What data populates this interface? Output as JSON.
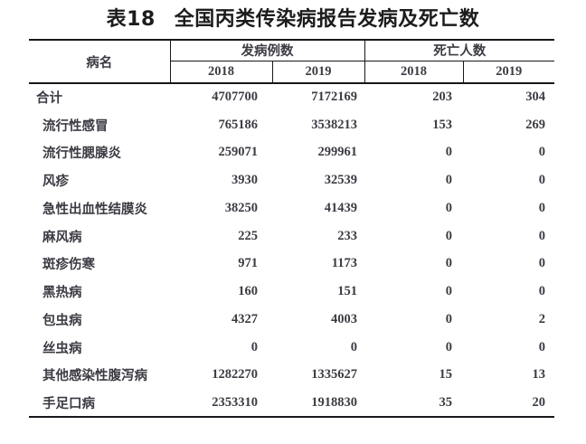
{
  "page": {
    "title_prefix": "表18",
    "title": "全国丙类传染病报告发病及死亡数"
  },
  "table": {
    "col_disease": "病名",
    "group_incidence": "发病例数",
    "group_deaths": "死亡人数",
    "year_cols": [
      "2018",
      "2019",
      "2018",
      "2019"
    ],
    "rows": [
      {
        "name": "合计",
        "incidence_2018": "4707700",
        "incidence_2019": "7172169",
        "deaths_2018": "203",
        "deaths_2019": "304"
      },
      {
        "name": "流行性感冒",
        "incidence_2018": "765186",
        "incidence_2019": "3538213",
        "deaths_2018": "153",
        "deaths_2019": "269"
      },
      {
        "name": "流行性腮腺炎",
        "incidence_2018": "259071",
        "incidence_2019": "299961",
        "deaths_2018": "0",
        "deaths_2019": "0"
      },
      {
        "name": "风疹",
        "incidence_2018": "3930",
        "incidence_2019": "32539",
        "deaths_2018": "0",
        "deaths_2019": "0"
      },
      {
        "name": "急性出血性结膜炎",
        "incidence_2018": "38250",
        "incidence_2019": "41439",
        "deaths_2018": "0",
        "deaths_2019": "0"
      },
      {
        "name": "麻风病",
        "incidence_2018": "225",
        "incidence_2019": "233",
        "deaths_2018": "0",
        "deaths_2019": "0"
      },
      {
        "name": "斑疹伤寒",
        "incidence_2018": "971",
        "incidence_2019": "1173",
        "deaths_2018": "0",
        "deaths_2019": "0"
      },
      {
        "name": "黑热病",
        "incidence_2018": "160",
        "incidence_2019": "151",
        "deaths_2018": "0",
        "deaths_2019": "0"
      },
      {
        "name": "包虫病",
        "incidence_2018": "4327",
        "incidence_2019": "4003",
        "deaths_2018": "0",
        "deaths_2019": "2"
      },
      {
        "name": "丝虫病",
        "incidence_2018": "0",
        "incidence_2019": "0",
        "deaths_2018": "0",
        "deaths_2019": "0"
      },
      {
        "name": "其他感染性腹泻病",
        "incidence_2018": "1282270",
        "incidence_2019": "1335627",
        "deaths_2018": "15",
        "deaths_2019": "13"
      },
      {
        "name": "手足口病",
        "incidence_2018": "2353310",
        "incidence_2019": "1918830",
        "deaths_2018": "35",
        "deaths_2019": "20"
      }
    ]
  },
  "colors": {
    "text": "#3b3b43",
    "border": "#17171c",
    "title": "#1c1c1c"
  }
}
